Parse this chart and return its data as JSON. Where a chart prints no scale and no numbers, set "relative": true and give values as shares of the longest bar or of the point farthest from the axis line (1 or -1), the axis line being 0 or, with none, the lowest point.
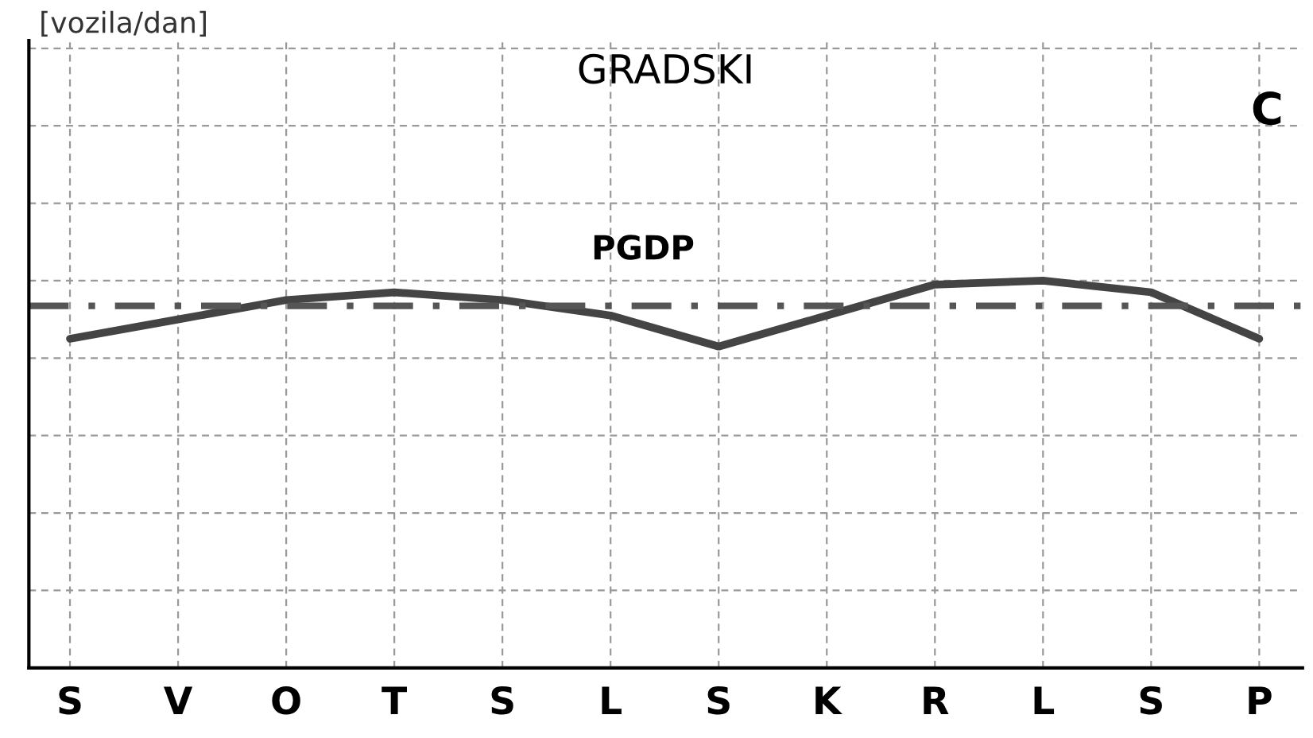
{
  "chart_data": {
    "type": "line",
    "title": "GRADSKI",
    "relative": true,
    "categories": [
      "S",
      "V",
      "O",
      "T",
      "S",
      "L",
      "S",
      "K",
      "R",
      "L",
      "S",
      "P"
    ],
    "series": [
      {
        "color": "#444444",
        "values": [
          0.85,
          0.9,
          0.95,
          0.97,
          0.95,
          0.91,
          0.83,
          0.91,
          0.99,
          1,
          0.97,
          0.85
        ]
      }
    ],
    "ref_lines": [
      {
        "axis": "y",
        "value": 0.935,
        "label": "PGDP",
        "color": "#555555",
        "line_style": "dashed"
      }
    ],
    "annotations": [
      "[vozila/dan]",
      "C"
    ],
    "grid": true,
    "marker": "none",
    "line_style": "solid",
    "legend": false
  }
}
